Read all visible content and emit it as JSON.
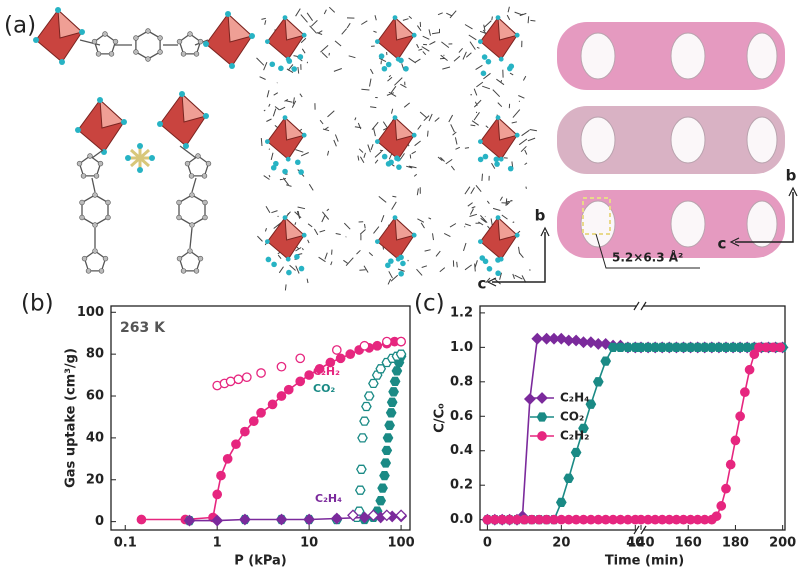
{
  "panel_a": {
    "label": "(a)",
    "axes": [
      [
        "b",
        "c"
      ],
      [
        "b",
        "c"
      ]
    ],
    "pore_size": "5.2×6.3 Å²"
  },
  "chart_data": [
    {
      "type": "line",
      "panel_label": "(b)",
      "annotation": "263 K",
      "xlabel": "P (kPa)",
      "ylabel": "Gas uptake (cm³/g)",
      "xscale": "log",
      "xlim": [
        0.07,
        125
      ],
      "xticks": [
        0.1,
        1,
        10,
        100
      ],
      "ylim": [
        -4,
        103
      ],
      "yticks": [
        0,
        20,
        40,
        60,
        80,
        100
      ],
      "series": [
        {
          "name": "C₂H₂",
          "color": "#e6267f",
          "marker": "circle",
          "line": true,
          "x": [
            0.15,
            0.45,
            0.9,
            1.0,
            1.1,
            1.3,
            1.6,
            2,
            2.5,
            3,
            4,
            5,
            6,
            8,
            10,
            13,
            17,
            22,
            28,
            35,
            45,
            55,
            70,
            85,
            100
          ],
          "values": [
            1,
            1,
            2,
            13,
            22,
            30,
            37,
            43,
            48,
            52,
            56,
            60,
            63,
            67,
            70,
            73,
            76,
            78,
            80,
            82,
            83,
            84,
            85,
            86,
            86
          ],
          "desorption_x": [
            1.0,
            1.2,
            1.4,
            1.7,
            2.1,
            3,
            5,
            8,
            20,
            40,
            70,
            100
          ],
          "desorption_values": [
            65,
            66,
            67,
            68,
            69,
            71,
            74,
            78,
            82,
            84,
            86,
            86
          ]
        },
        {
          "name": "CO₂",
          "color": "#1a8a85",
          "marker": "hexagon",
          "line": false,
          "x": [
            0.5,
            2,
            5,
            10,
            20,
            40,
            50,
            55,
            60,
            63,
            66,
            68,
            70,
            72,
            75,
            78,
            80,
            83,
            86,
            90,
            95,
            100
          ],
          "values": [
            0.5,
            1,
            1,
            1,
            1,
            1,
            2,
            5,
            10,
            16,
            22,
            28,
            34,
            40,
            46,
            52,
            57,
            62,
            67,
            72,
            76,
            79
          ],
          "desorption_x": [
            20,
            33,
            35,
            36,
            37,
            38,
            40,
            42,
            45,
            50,
            55,
            60,
            70,
            80,
            90,
            100
          ],
          "desorption_values": [
            1,
            2,
            5,
            15,
            25,
            40,
            48,
            55,
            60,
            66,
            70,
            73,
            76,
            78,
            79,
            80
          ]
        },
        {
          "name": "C₂H₄",
          "color": "#7b2a9c",
          "marker": "diamond",
          "line": true,
          "x": [
            0.5,
            1,
            2,
            5,
            10,
            20,
            40,
            60,
            80,
            100
          ],
          "values": [
            0.5,
            0.5,
            1,
            1,
            1,
            1.5,
            2,
            2,
            2.5,
            2.5
          ],
          "desorption_x": [
            30,
            50,
            70,
            100
          ],
          "desorption_values": [
            3,
            3,
            3,
            3
          ]
        }
      ]
    },
    {
      "type": "line",
      "panel_label": "(c)",
      "xlabel": "Time (min)",
      "ylabel": "C/C₀",
      "legend": "center left",
      "xlim": [
        [
          -2,
          41
        ],
        [
          140,
          201
        ]
      ],
      "xticks": [
        0,
        20,
        40,
        140,
        160,
        180,
        200
      ],
      "ylim": [
        -0.06,
        1.24
      ],
      "yticks": [
        {
          "value": 0,
          "label": "0.0"
        },
        0.2,
        0.4,
        0.6,
        0.8,
        {
          "value": 1,
          "label": "1.0"
        },
        1.2
      ],
      "series": [
        {
          "name": "C₂H₄",
          "color": "#7b2a9c",
          "marker": "diamond",
          "line": true,
          "x": [
            0,
            2,
            4,
            6,
            8,
            9.5,
            11.5,
            13.5,
            16,
            18,
            20,
            22,
            24,
            26,
            28,
            30,
            32,
            34,
            36,
            38,
            40,
            140,
            143,
            146,
            149,
            152,
            155,
            158,
            161,
            164,
            167,
            170,
            173,
            176,
            179,
            182,
            185,
            188,
            191,
            194,
            197,
            200
          ],
          "values": [
            0,
            0,
            0,
            0,
            0,
            0.02,
            0.7,
            1.05,
            1.05,
            1.05,
            1.05,
            1.04,
            1.04,
            1.03,
            1.03,
            1.02,
            1.02,
            1.01,
            1.01,
            1.0,
            1.0,
            1,
            1,
            1,
            1,
            1,
            1,
            1,
            1,
            1,
            1,
            1,
            1,
            1,
            1,
            1,
            1,
            1,
            1,
            1,
            1,
            1
          ]
        },
        {
          "name": "CO₂",
          "color": "#1a8a85",
          "marker": "hexagon",
          "line": true,
          "x": [
            0,
            2,
            4,
            6,
            8,
            10,
            12,
            14,
            16,
            18,
            20,
            22,
            24,
            26,
            28,
            30,
            32,
            34,
            36,
            38,
            40,
            140,
            143,
            146,
            149,
            152,
            155,
            158,
            161,
            164,
            167,
            170,
            173,
            176,
            179,
            182,
            185,
            188,
            191,
            194,
            197,
            200
          ],
          "values": [
            0,
            0,
            0,
            0,
            0,
            0,
            0,
            0,
            0,
            0,
            0.1,
            0.24,
            0.39,
            0.53,
            0.67,
            0.8,
            0.92,
            1.0,
            1.0,
            1.0,
            1.0,
            1,
            1,
            1,
            1,
            1,
            1,
            1,
            1,
            1,
            1,
            1,
            1,
            1,
            1,
            1,
            1,
            1,
            1,
            1,
            1,
            1
          ]
        },
        {
          "name": "C₂H₂",
          "color": "#e6267f",
          "marker": "circle",
          "line": true,
          "x": [
            0,
            2,
            4,
            6,
            8,
            10,
            12,
            14,
            16,
            18,
            20,
            22,
            24,
            26,
            28,
            30,
            32,
            34,
            36,
            38,
            40,
            140,
            143,
            146,
            149,
            152,
            155,
            158,
            161,
            164,
            167,
            170,
            172,
            174,
            176,
            178,
            180,
            182,
            184,
            186,
            188,
            190,
            193,
            196,
            199
          ],
          "values": [
            0,
            0,
            0,
            0,
            0,
            0,
            0,
            0,
            0,
            0,
            0,
            0,
            0,
            0,
            0,
            0,
            0,
            0,
            0,
            0,
            0,
            0,
            0,
            0,
            0,
            0,
            0,
            0,
            0,
            0,
            0,
            0,
            0.02,
            0.08,
            0.18,
            0.32,
            0.46,
            0.6,
            0.74,
            0.87,
            0.96,
            1.0,
            1.0,
            1.0,
            1.0
          ]
        }
      ]
    }
  ]
}
